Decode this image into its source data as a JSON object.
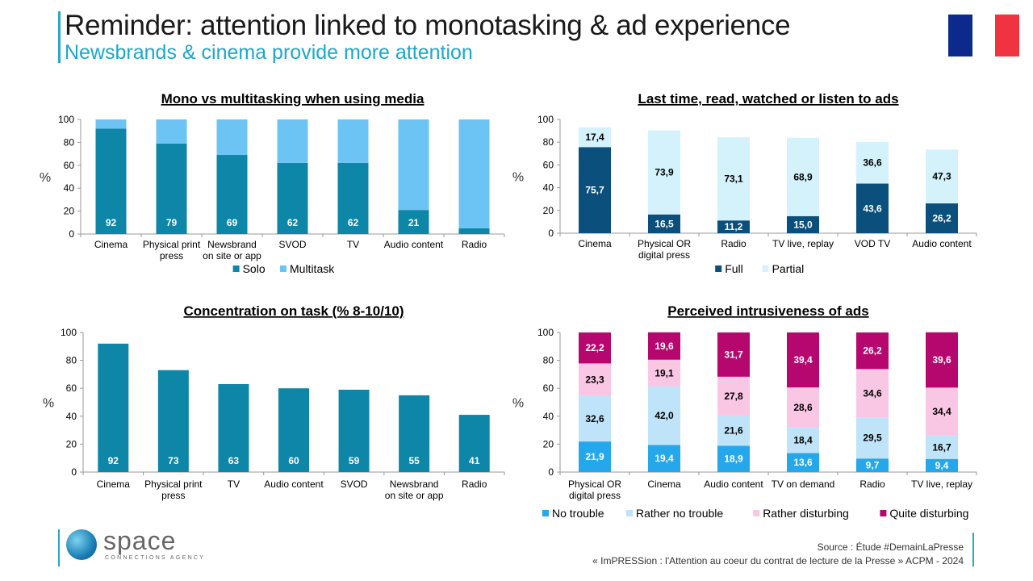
{
  "header": {
    "title": "Reminder: attention linked to monotasking & ad experience",
    "subtitle": "Newsbrands & cinema provide more attention"
  },
  "footer": {
    "logo_word": "space",
    "logo_tag": "CONNECTIONS AGENCY",
    "source_line1": "Source : Étude #DemainLaPresse",
    "source_line2": "« ImPRESSion : l'Attention au coeur du contrat de lecture de la Presse » ACPM - 2024"
  },
  "colors": {
    "flag_blue": "#0b2a8c",
    "flag_red": "#ef3340"
  },
  "chart_data": [
    {
      "type": "bar",
      "stacked": true,
      "title": "Mono vs multitasking when using media",
      "ylabel": "%",
      "ylim": [
        0,
        100
      ],
      "yticks": [
        0,
        20,
        40,
        60,
        80,
        100
      ],
      "categories": [
        [
          "Cinema"
        ],
        [
          "Physical print",
          "press"
        ],
        [
          "Newsbrand",
          "on site or app"
        ],
        [
          "SVOD"
        ],
        [
          "TV"
        ],
        [
          "Audio content"
        ],
        [
          "Radio"
        ]
      ],
      "series": [
        {
          "name": "Solo",
          "color": "#0e86a8",
          "values": [
            92,
            79,
            69,
            62,
            62,
            21,
            5
          ],
          "labels": [
            "92",
            "79",
            "69",
            "62",
            "62",
            "21",
            "5"
          ],
          "label_color": "#ffffff"
        },
        {
          "name": "Multitask",
          "color": "#6cc4f5",
          "values": [
            8,
            21,
            31,
            38,
            38,
            79,
            95
          ],
          "labels": [],
          "label_color": "#000000"
        }
      ],
      "legend": "bottom"
    },
    {
      "type": "bar",
      "stacked": true,
      "title": "Last time, read, watched or listen to ads",
      "ylabel": "%",
      "ylim": [
        0,
        100
      ],
      "yticks": [
        0,
        20,
        40,
        60,
        80,
        100
      ],
      "categories": [
        [
          "Cinema"
        ],
        [
          "Physical OR",
          "digital press"
        ],
        [
          "Radio"
        ],
        [
          "TV live, replay"
        ],
        [
          "VOD TV"
        ],
        [
          "Audio content"
        ]
      ],
      "series": [
        {
          "name": "Full",
          "color": "#0b4f7c",
          "values": [
            75.7,
            16.5,
            11.2,
            15.0,
            43.6,
            26.2
          ],
          "labels": [
            "75,7",
            "16,5",
            "11,2",
            "15,0",
            "43,6",
            "26,2"
          ],
          "label_color": "#ffffff"
        },
        {
          "name": "Partial",
          "color": "#d3f2fb",
          "values": [
            17.4,
            73.9,
            73.1,
            68.9,
            36.6,
            47.3
          ],
          "labels": [
            "17,4",
            "73,9",
            "73,1",
            "68,9",
            "36,6",
            "47,3"
          ],
          "label_color": "#000000"
        }
      ],
      "legend": "bottom"
    },
    {
      "type": "bar",
      "stacked": false,
      "title": "Concentration on task (% 8-10/10)",
      "ylabel": "%",
      "ylim": [
        0,
        100
      ],
      "yticks": [
        0,
        20,
        40,
        60,
        80,
        100
      ],
      "categories": [
        [
          "Cinema"
        ],
        [
          "Physical print",
          "press"
        ],
        [
          "TV"
        ],
        [
          "Audio content"
        ],
        [
          "SVOD"
        ],
        [
          "Newsbrand",
          "on site or app"
        ],
        [
          "Radio"
        ]
      ],
      "series": [
        {
          "color": "#0e86a8",
          "values": [
            92,
            73,
            63,
            60,
            59,
            55,
            41
          ],
          "labels": [
            "92",
            "73",
            "63",
            "60",
            "59",
            "55",
            "41"
          ],
          "label_color": "#ffffff"
        }
      ],
      "legend": "none"
    },
    {
      "type": "bar",
      "stacked": true,
      "title": "Perceived intrusiveness of ads",
      "ylabel": "%",
      "ylim": [
        0,
        100
      ],
      "yticks": [
        0,
        20,
        40,
        60,
        80,
        100
      ],
      "categories": [
        [
          "Physical OR",
          "digital press"
        ],
        [
          "Cinema"
        ],
        [
          "Audio content"
        ],
        [
          "TV on demand"
        ],
        [
          "Radio"
        ],
        [
          "TV live, replay"
        ]
      ],
      "series": [
        {
          "name": "No trouble",
          "color": "#25a7ec",
          "values": [
            21.9,
            19.4,
            18.9,
            13.6,
            9.7,
            9.4
          ],
          "labels": [
            "21,9",
            "19,4",
            "18,9",
            "13,6",
            "9,7",
            "9,4"
          ],
          "label_color": "#ffffff"
        },
        {
          "name": "Rather no trouble",
          "color": "#bfe3f8",
          "values": [
            32.6,
            42.0,
            21.6,
            18.4,
            29.5,
            16.7
          ],
          "labels": [
            "32,6",
            "42,0",
            "21,6",
            "18,4",
            "29,5",
            "16,7"
          ],
          "label_color": "#000000"
        },
        {
          "name": "Rather disturbing",
          "color": "#f9c6e4",
          "values": [
            23.3,
            19.1,
            27.8,
            28.6,
            34.6,
            34.4
          ],
          "labels": [
            "23,3",
            "19,1",
            "27,8",
            "28,6",
            "34,6",
            "34,4"
          ],
          "label_color": "#000000"
        },
        {
          "name": "Quite disturbing",
          "color": "#b6076e",
          "values": [
            22.2,
            19.6,
            31.7,
            39.4,
            26.2,
            39.6
          ],
          "labels": [
            "22,2",
            "19,6",
            "31,7",
            "39,4",
            "26,2",
            "39,6"
          ],
          "label_color": "#ffffff"
        }
      ],
      "legend": "bottom"
    }
  ]
}
